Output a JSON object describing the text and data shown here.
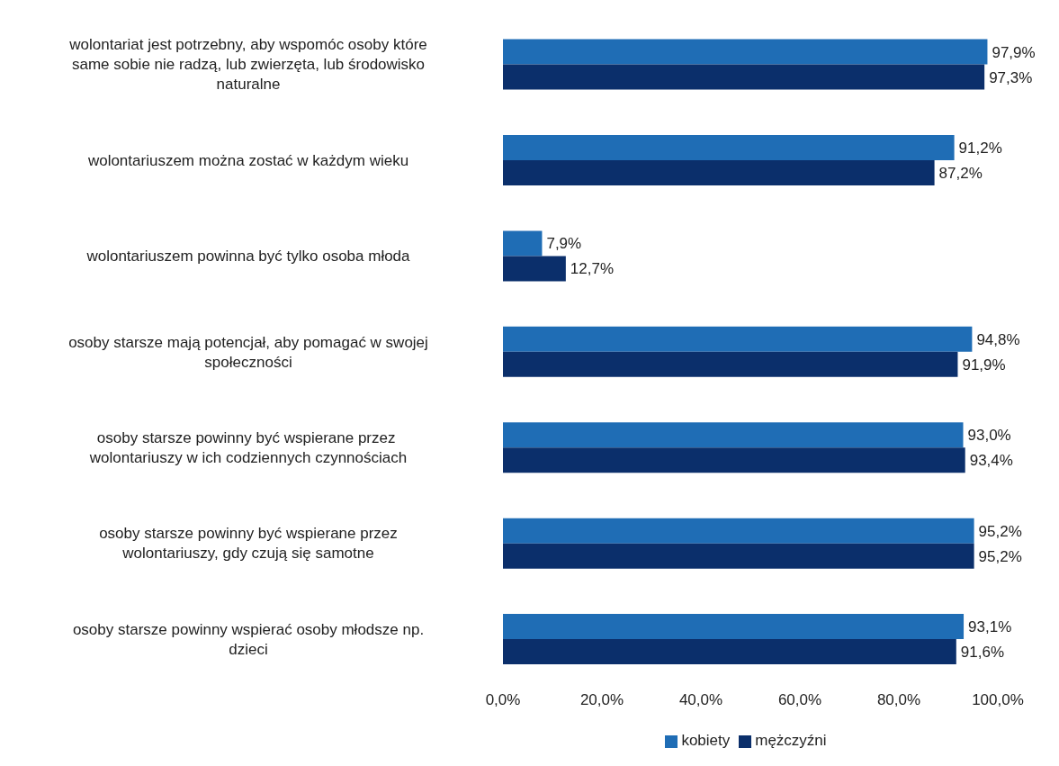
{
  "chart_data": {
    "type": "bar",
    "orientation": "horizontal",
    "legend": "bottom",
    "categories": [
      "wolontariat jest potrzebny, aby wspomóc osoby które same sobie nie radzą, lub zwierzęta, lub środowisko naturalne",
      "wolontariuszem można zostać w każdym wieku",
      "wolontariuszem powinna być  tylko osoba młoda",
      "osoby starsze mają potencjał, aby pomagać w swojej społeczności",
      "osoby starsze powinny być wspierane przez  wolontariuszy w ich codziennych czynnościach",
      "osoby starsze powinny być wspierane przez wolontariuszy, gdy czują się samotne",
      "osoby starsze powinny wspierać osoby młodsze np. dzieci"
    ],
    "series": [
      {
        "name": "kobiety",
        "color": "#1f6db5",
        "values": [
          97.9,
          91.2,
          7.9,
          94.8,
          93.0,
          95.2,
          93.1
        ],
        "value_labels": [
          "97,9%",
          "91,2%",
          "7,9%",
          "94,8%",
          "93,0%",
          "95,2%",
          "93,1%"
        ]
      },
      {
        "name": "mężczyźni",
        "color": "#0b2f6b",
        "values": [
          97.3,
          87.2,
          12.7,
          91.9,
          93.4,
          95.2,
          91.6
        ],
        "value_labels": [
          "97,3%",
          "87,2%",
          "12,7%",
          "91,9%",
          "93,4%",
          "95,2%",
          "91,6%"
        ]
      }
    ],
    "xlim": [
      0,
      100
    ],
    "xticks": [
      {
        "value": 0,
        "label": "0,0%"
      },
      {
        "value": 20,
        "label": "20,0%"
      },
      {
        "value": 40,
        "label": "40,0%"
      },
      {
        "value": 60,
        "label": "60,0%"
      },
      {
        "value": 80,
        "label": "80,0%"
      },
      {
        "value": 100,
        "label": "100,0%"
      }
    ]
  }
}
